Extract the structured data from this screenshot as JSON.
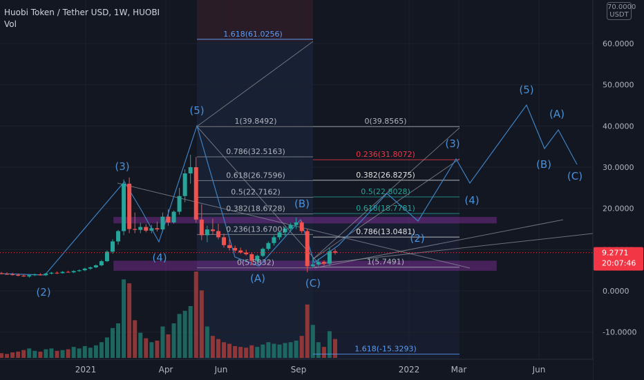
{
  "header": {
    "title": "Huobi Token / Tether USD, 1W, HUOBI",
    "vol_label": "Vol"
  },
  "currency_badge": {
    "line1": "70.0000",
    "line2": "USDT"
  },
  "price_badge": {
    "price": "9.2771",
    "countdown": "20:07:46",
    "color": "#f23645"
  },
  "colors": {
    "up": "#26a69a",
    "down": "#ef5350",
    "wave": "#3d82c4",
    "wave_label": "#4a90d9",
    "zone": "#e040fb",
    "background": "#131722"
  },
  "chart_data": {
    "type": "candlestick",
    "title": "Huobi Token / Tether USD, 1W, HUOBI",
    "yaxis": {
      "ticks": [
        60,
        50,
        40,
        30,
        20,
        10,
        0,
        -10
      ],
      "tick_labels": [
        "60.0000",
        "50.0000",
        "40.0000",
        "30.0000",
        "20.0000",
        "10.0000",
        "0.0000",
        "-10.0000"
      ],
      "range": [
        -17,
        70
      ]
    },
    "xaxis": {
      "tick_labels": [
        "2021",
        "Apr",
        "Jun",
        "Sep",
        "2022",
        "Mar",
        "Jun"
      ]
    },
    "grid": true,
    "candles": [
      {
        "o": 4.3,
        "h": 4.6,
        "l": 4.0,
        "c": 4.1,
        "v": 6
      },
      {
        "o": 4.1,
        "h": 4.5,
        "l": 3.9,
        "c": 4.0,
        "v": 5
      },
      {
        "o": 4.0,
        "h": 4.4,
        "l": 3.7,
        "c": 3.9,
        "v": 7
      },
      {
        "o": 3.9,
        "h": 4.2,
        "l": 3.5,
        "c": 3.7,
        "v": 8
      },
      {
        "o": 3.7,
        "h": 4.0,
        "l": 3.4,
        "c": 3.5,
        "v": 10
      },
      {
        "o": 3.5,
        "h": 3.9,
        "l": 3.2,
        "c": 3.8,
        "v": 12
      },
      {
        "o": 3.8,
        "h": 4.2,
        "l": 3.6,
        "c": 4.0,
        "v": 9
      },
      {
        "o": 4.0,
        "h": 4.3,
        "l": 3.7,
        "c": 3.8,
        "v": 8
      },
      {
        "o": 3.8,
        "h": 4.4,
        "l": 3.6,
        "c": 4.2,
        "v": 11
      },
      {
        "o": 4.2,
        "h": 4.6,
        "l": 4.0,
        "c": 4.4,
        "v": 12
      },
      {
        "o": 4.4,
        "h": 4.7,
        "l": 4.1,
        "c": 4.3,
        "v": 9
      },
      {
        "o": 4.3,
        "h": 4.8,
        "l": 4.2,
        "c": 4.6,
        "v": 10
      },
      {
        "o": 4.6,
        "h": 4.9,
        "l": 4.4,
        "c": 4.5,
        "v": 11
      },
      {
        "o": 4.5,
        "h": 5.0,
        "l": 4.3,
        "c": 4.8,
        "v": 14
      },
      {
        "o": 4.8,
        "h": 5.2,
        "l": 4.6,
        "c": 5.0,
        "v": 12
      },
      {
        "o": 5.0,
        "h": 5.6,
        "l": 4.8,
        "c": 5.4,
        "v": 15
      },
      {
        "o": 5.4,
        "h": 5.9,
        "l": 5.1,
        "c": 5.7,
        "v": 13
      },
      {
        "o": 5.7,
        "h": 6.4,
        "l": 5.5,
        "c": 6.2,
        "v": 16
      },
      {
        "o": 6.2,
        "h": 7.5,
        "l": 6.0,
        "c": 7.2,
        "v": 20
      },
      {
        "o": 7.2,
        "h": 9.8,
        "l": 7.0,
        "c": 9.5,
        "v": 26
      },
      {
        "o": 9.5,
        "h": 12.5,
        "l": 9.0,
        "c": 12.0,
        "v": 38
      },
      {
        "o": 12.0,
        "h": 14.8,
        "l": 11.2,
        "c": 14.5,
        "v": 44
      },
      {
        "o": 14.5,
        "h": 27.0,
        "l": 13.5,
        "c": 26.0,
        "v": 100
      },
      {
        "o": 26.0,
        "h": 27.5,
        "l": 14.0,
        "c": 15.0,
        "v": 95
      },
      {
        "o": 15.0,
        "h": 19.0,
        "l": 14.0,
        "c": 14.8,
        "v": 48
      },
      {
        "o": 14.8,
        "h": 16.5,
        "l": 14.0,
        "c": 15.5,
        "v": 32
      },
      {
        "o": 15.5,
        "h": 16.2,
        "l": 14.2,
        "c": 14.6,
        "v": 25
      },
      {
        "o": 14.6,
        "h": 16.0,
        "l": 14.0,
        "c": 15.2,
        "v": 20
      },
      {
        "o": 15.2,
        "h": 16.8,
        "l": 14.4,
        "c": 14.9,
        "v": 22
      },
      {
        "o": 14.9,
        "h": 19.0,
        "l": 14.4,
        "c": 18.0,
        "v": 40
      },
      {
        "o": 18.0,
        "h": 19.8,
        "l": 15.8,
        "c": 16.6,
        "v": 30
      },
      {
        "o": 16.6,
        "h": 19.5,
        "l": 16.3,
        "c": 19.2,
        "v": 44
      },
      {
        "o": 19.2,
        "h": 25.0,
        "l": 18.5,
        "c": 23.0,
        "v": 56
      },
      {
        "o": 23.0,
        "h": 29.5,
        "l": 21.5,
        "c": 28.5,
        "v": 60
      },
      {
        "o": 28.5,
        "h": 33.0,
        "l": 26.0,
        "c": 30.0,
        "v": 66
      },
      {
        "o": 30.0,
        "h": 32.5,
        "l": 16.5,
        "c": 17.3,
        "v": 110
      },
      {
        "o": 17.3,
        "h": 21.0,
        "l": 12.3,
        "c": 13.5,
        "v": 86
      },
      {
        "o": 13.5,
        "h": 15.8,
        "l": 11.8,
        "c": 14.9,
        "v": 40
      },
      {
        "o": 14.9,
        "h": 17.5,
        "l": 13.6,
        "c": 14.5,
        "v": 28
      },
      {
        "o": 14.5,
        "h": 16.3,
        "l": 12.5,
        "c": 13.0,
        "v": 24
      },
      {
        "o": 13.0,
        "h": 13.9,
        "l": 10.5,
        "c": 11.1,
        "v": 20
      },
      {
        "o": 11.1,
        "h": 12.5,
        "l": 9.8,
        "c": 10.4,
        "v": 18
      },
      {
        "o": 10.4,
        "h": 11.0,
        "l": 9.4,
        "c": 9.8,
        "v": 15
      },
      {
        "o": 9.8,
        "h": 10.5,
        "l": 9.0,
        "c": 9.3,
        "v": 14
      },
      {
        "o": 9.3,
        "h": 10.0,
        "l": 8.6,
        "c": 8.9,
        "v": 13
      },
      {
        "o": 8.9,
        "h": 9.3,
        "l": 6.3,
        "c": 7.3,
        "v": 16
      },
      {
        "o": 7.3,
        "h": 8.8,
        "l": 6.8,
        "c": 8.5,
        "v": 14
      },
      {
        "o": 8.5,
        "h": 10.5,
        "l": 8.2,
        "c": 10.2,
        "v": 17
      },
      {
        "o": 10.2,
        "h": 12.0,
        "l": 9.8,
        "c": 11.6,
        "v": 20
      },
      {
        "o": 11.6,
        "h": 13.5,
        "l": 11.0,
        "c": 13.0,
        "v": 18
      },
      {
        "o": 13.0,
        "h": 14.5,
        "l": 12.4,
        "c": 14.2,
        "v": 17
      },
      {
        "o": 14.2,
        "h": 15.6,
        "l": 13.3,
        "c": 15.1,
        "v": 19
      },
      {
        "o": 15.1,
        "h": 16.5,
        "l": 14.5,
        "c": 16.0,
        "v": 20
      },
      {
        "o": 16.0,
        "h": 17.8,
        "l": 15.0,
        "c": 16.6,
        "v": 22
      },
      {
        "o": 16.6,
        "h": 17.0,
        "l": 14.0,
        "c": 14.5,
        "v": 28
      },
      {
        "o": 14.5,
        "h": 15.0,
        "l": 4.5,
        "c": 6.0,
        "v": 68
      },
      {
        "o": 6.0,
        "h": 7.9,
        "l": 5.7,
        "c": 6.4,
        "v": 42
      },
      {
        "o": 6.4,
        "h": 7.8,
        "l": 6.0,
        "c": 7.0,
        "v": 20
      },
      {
        "o": 7.0,
        "h": 7.4,
        "l": 6.1,
        "c": 6.6,
        "v": 14
      },
      {
        "o": 6.6,
        "h": 10.5,
        "l": 6.0,
        "c": 9.6,
        "v": 34
      },
      {
        "o": 9.6,
        "h": 10.2,
        "l": 8.8,
        "c": 9.2771,
        "v": 24
      }
    ],
    "fib_retracements": [
      {
        "label": "1(39.8492)",
        "value": 39.8492
      },
      {
        "label": "0.786(32.5163)",
        "value": 32.5163
      },
      {
        "label": "0.618(26.7596)",
        "value": 26.7596
      },
      {
        "label": "0.5(22.7162)",
        "value": 22.7162
      },
      {
        "label": "0.382(18.6728)",
        "value": 18.6728
      },
      {
        "label": "0.236(13.6700)",
        "value": 13.67
      },
      {
        "label": "0(5.5832)",
        "value": 5.5832
      }
    ],
    "fib_projection_left": [
      {
        "label": "1.618(61.0256)",
        "value": 61.0256
      }
    ],
    "fib_retracements_right": [
      {
        "label": "0(39.8565)",
        "value": 39.8565
      },
      {
        "label": "0.236(31.8072)",
        "value": 31.8072
      },
      {
        "label": "0.382(26.8275)",
        "value": 26.8275
      },
      {
        "label": "0.5(22.8028)",
        "value": 22.8028
      },
      {
        "label": "0.618(18.7781)",
        "value": 18.7781
      },
      {
        "label": "0.786(13.0481)",
        "value": 13.0481
      },
      {
        "label": "1(5.7491)",
        "value": 5.7491
      },
      {
        "label": "1.618(-15.3293)",
        "value": -15.3293
      }
    ],
    "wave_labels": [
      "(2)",
      "(3)",
      "(4)",
      "(5)",
      "(A)",
      "(B)",
      "(C)",
      "(3)",
      "(4)",
      "(5)",
      "(A)",
      "(B)",
      "(C)",
      "(2)"
    ],
    "support_zones": [
      {
        "low": 5.0,
        "high": 7.2
      },
      {
        "low": 16.5,
        "high": 17.8
      }
    ]
  }
}
